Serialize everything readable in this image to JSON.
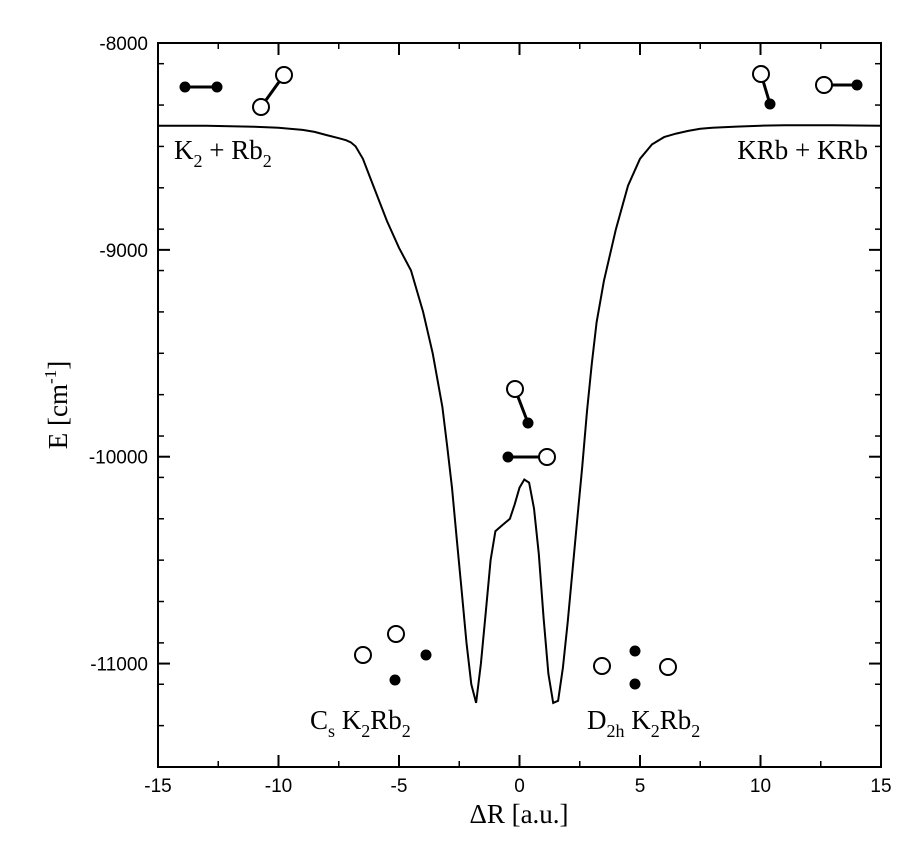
{
  "chart_data": {
    "type": "line",
    "xlabel": "ΔR [a.u.]",
    "ylabel": "E [cm",
    "ylabel_sup": "-1",
    "ylabel_close": "]",
    "xlim": [
      -15,
      15
    ],
    "ylim": [
      -11500,
      -8000
    ],
    "x_ticks": [
      -15,
      -10,
      -5,
      0,
      5,
      10,
      15
    ],
    "x_tick_labels": [
      "-15",
      "-10",
      "-5",
      "0",
      "5",
      "10",
      "15"
    ],
    "y_ticks": [
      -11000,
      -10000,
      -9000,
      -8000
    ],
    "y_tick_labels": [
      "-11000",
      "-10000",
      "-9000",
      "-8000"
    ],
    "grid": false,
    "legend": "none",
    "line_color": "#000000",
    "series": [
      {
        "x": [
          -15,
          -13,
          -11,
          -10,
          -9,
          -8.5,
          -8,
          -7.5,
          -7.2,
          -7,
          -6.8,
          -6.5,
          -6.2,
          -6,
          -5.5,
          -5,
          -4.5,
          -4,
          -3.6,
          -3.2,
          -3,
          -2.8,
          -2.6,
          -2.4,
          -2.2,
          -2,
          -1.8,
          -1.6,
          -1.4,
          -1.2,
          -1.0,
          -0.8,
          -0.6,
          -0.4,
          -0.2,
          0,
          0.2,
          0.4,
          0.6,
          0.8,
          1.0,
          1.2,
          1.4,
          1.6,
          1.8,
          2.0,
          2.2,
          2.4,
          2.6,
          2.8,
          3.0,
          3.2,
          3.5,
          4.0,
          4.5,
          5.0,
          5.5,
          6.0,
          6.5,
          7.0,
          7.5,
          8,
          9,
          10,
          11,
          13,
          15
        ],
        "y": [
          -8400,
          -8400,
          -8405,
          -8410,
          -8420,
          -8430,
          -8445,
          -8460,
          -8470,
          -8480,
          -8500,
          -8560,
          -8650,
          -8710,
          -8860,
          -8990,
          -9100,
          -9300,
          -9500,
          -9760,
          -9950,
          -10150,
          -10400,
          -10650,
          -10900,
          -11100,
          -11190,
          -11000,
          -10750,
          -10500,
          -10360,
          -10340,
          -10320,
          -10300,
          -10230,
          -10150,
          -10110,
          -10125,
          -10250,
          -10470,
          -10780,
          -11050,
          -11190,
          -11180,
          -11020,
          -10800,
          -10550,
          -10300,
          -10050,
          -9780,
          -9550,
          -9350,
          -9150,
          -8900,
          -8690,
          -8560,
          -8490,
          -8455,
          -8438,
          -8425,
          -8415,
          -8410,
          -8404,
          -8400,
          -8398,
          -8398,
          -8400
        ]
      }
    ],
    "annotations": [
      {
        "main": "K",
        "sub": "2",
        "main2": " + Rb",
        "sub2": "2"
      },
      {
        "main": "KRb + KRb"
      },
      {
        "main": "C",
        "sub": "s",
        "main2": " K",
        "sub2": "2",
        "main3": "Rb",
        "sub3": "2"
      },
      {
        "main": "D",
        "sub": "2h",
        "main2": " K",
        "sub2": "2",
        "main3": "Rb",
        "sub3": "2"
      }
    ],
    "molecule_icons": [
      {
        "name": "k2-rb2-molecules",
        "label": "K2 + Rb2 geometry"
      },
      {
        "name": "krb-krb-molecules",
        "label": "KRb + KRb geometry"
      },
      {
        "name": "transition-state-molecules",
        "label": "transition state geometry"
      },
      {
        "name": "cs-k2rb2-molecules",
        "label": "Cs K2Rb2 geometry"
      },
      {
        "name": "d2h-k2rb2-molecules",
        "label": "D2h K2Rb2 geometry"
      }
    ]
  }
}
